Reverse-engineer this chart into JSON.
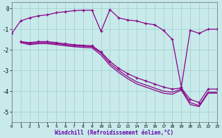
{
  "xlabel": "Windchill (Refroidissement éolien,°C)",
  "bg_color": "#c8eaea",
  "line_color": "#880088",
  "grid_color": "#a8d0d0",
  "xlim": [
    0,
    23
  ],
  "ylim": [
    -5.5,
    0.3
  ],
  "yticks": [
    0,
    -1,
    -2,
    -3,
    -4,
    -5
  ],
  "xticks": [
    0,
    1,
    2,
    3,
    4,
    5,
    6,
    7,
    8,
    9,
    10,
    11,
    12,
    13,
    14,
    15,
    16,
    17,
    18,
    19,
    20,
    21,
    22,
    23
  ],
  "line1_x": [
    0,
    1,
    2,
    3,
    4,
    5,
    6,
    7,
    8,
    9,
    10,
    11,
    12,
    13,
    14,
    15,
    16,
    17,
    18,
    19,
    20,
    21,
    22,
    23
  ],
  "line1_y": [
    -1.2,
    -0.6,
    -0.45,
    -0.35,
    -0.3,
    -0.2,
    -0.15,
    -0.1,
    -0.08,
    -0.08,
    -1.1,
    -0.05,
    -0.45,
    -0.55,
    -0.6,
    -0.72,
    -0.78,
    -1.05,
    -1.5,
    -3.8,
    -1.05,
    -1.2,
    -1.0,
    -1.0
  ],
  "line2_x": [
    1,
    2,
    3,
    4,
    5,
    6,
    7,
    8,
    9,
    10,
    11,
    12,
    13,
    14,
    15,
    16,
    17,
    18,
    19,
    20,
    21,
    22,
    23
  ],
  "line2_y": [
    -1.6,
    -1.65,
    -1.6,
    -1.6,
    -1.65,
    -1.7,
    -1.75,
    -1.78,
    -1.8,
    -2.1,
    -2.55,
    -2.9,
    -3.15,
    -3.35,
    -3.5,
    -3.65,
    -3.8,
    -3.9,
    -3.85,
    -4.4,
    -4.55,
    -3.9,
    -3.9
  ],
  "line3_x": [
    1,
    2,
    3,
    4,
    5,
    6,
    7,
    8,
    9,
    10,
    11,
    12,
    13,
    14,
    15,
    16,
    17,
    18,
    19,
    20,
    21,
    22,
    23
  ],
  "line3_y": [
    -1.6,
    -1.7,
    -1.65,
    -1.65,
    -1.7,
    -1.75,
    -1.8,
    -1.82,
    -1.85,
    -2.15,
    -2.65,
    -3.0,
    -3.3,
    -3.55,
    -3.7,
    -3.85,
    -4.0,
    -4.05,
    -3.9,
    -4.55,
    -4.7,
    -4.05,
    -4.05
  ],
  "line4_x": [
    1,
    2,
    3,
    4,
    5,
    6,
    7,
    8,
    9,
    10,
    11,
    12,
    13,
    14,
    15,
    16,
    17,
    18,
    19,
    20,
    21,
    22,
    23
  ],
  "line4_y": [
    -1.65,
    -1.75,
    -1.7,
    -1.7,
    -1.75,
    -1.8,
    -1.85,
    -1.88,
    -1.9,
    -2.25,
    -2.75,
    -3.1,
    -3.4,
    -3.65,
    -3.8,
    -3.95,
    -4.1,
    -4.15,
    -3.95,
    -4.65,
    -4.75,
    -4.1,
    -4.1
  ]
}
